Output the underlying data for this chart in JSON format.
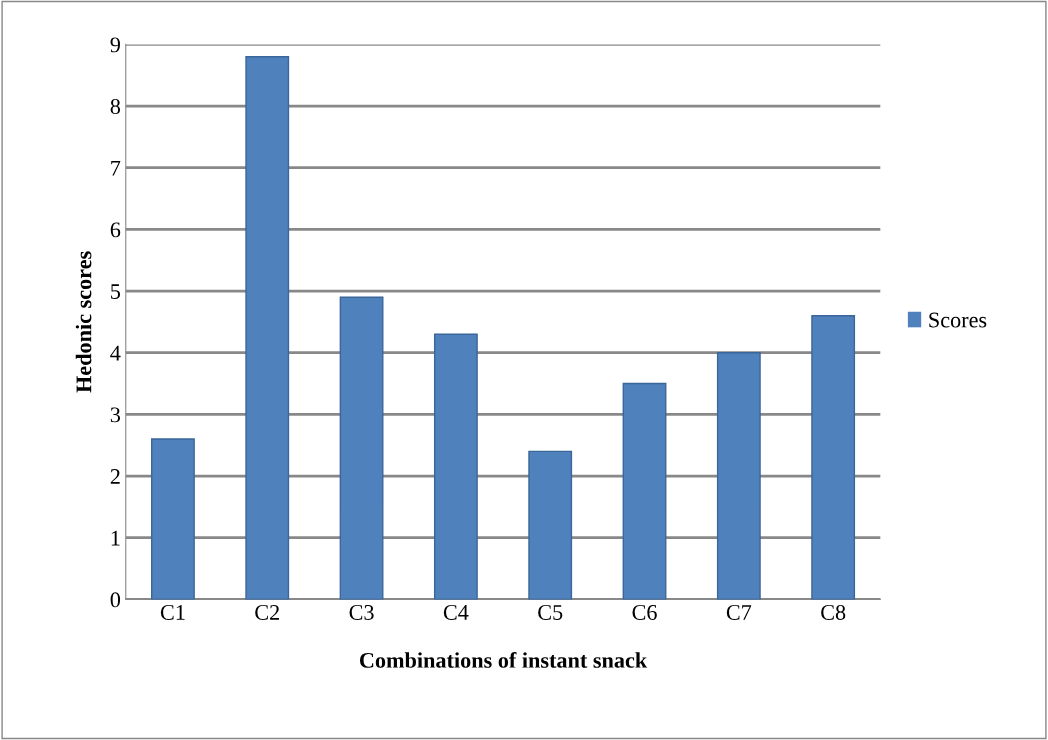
{
  "chart_data": {
    "type": "bar",
    "xlabel": "Combinations of instant snack",
    "ylabel": "Hedonic scores",
    "categories": [
      "C1",
      "C2",
      "C3",
      "C4",
      "C5",
      "C6",
      "C7",
      "C8"
    ],
    "series": [
      {
        "name": "Scores",
        "color": "#4f81bd",
        "values": [
          2.6,
          8.8,
          4.9,
          4.3,
          2.4,
          3.5,
          4.0,
          4.6
        ]
      }
    ],
    "ylim": [
      0,
      9
    ],
    "yticks": [
      0,
      1,
      2,
      3,
      4,
      5,
      6,
      7,
      8,
      9
    ],
    "grid": "y",
    "legend": "right"
  }
}
